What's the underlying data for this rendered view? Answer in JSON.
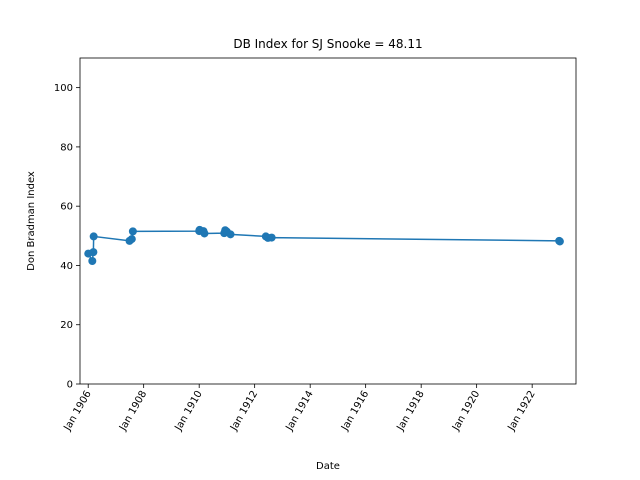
{
  "chart_data": {
    "type": "line",
    "title": "DB Index for SJ Snooke = 48.11",
    "xlabel": "Date",
    "ylabel": "Don Bradman Index",
    "ylim": [
      0,
      110
    ],
    "xlim": [
      "1905-09-15",
      "1923-08-01"
    ],
    "grid": false,
    "legend": false,
    "colors": {
      "series": "#1f77b4"
    },
    "y_ticks": [
      0,
      20,
      40,
      60,
      80,
      100
    ],
    "x_ticks": [
      {
        "date": "1906-01-01",
        "label": "Jan 1906"
      },
      {
        "date": "1908-01-01",
        "label": "Jan 1908"
      },
      {
        "date": "1910-01-01",
        "label": "Jan 1910"
      },
      {
        "date": "1912-01-01",
        "label": "Jan 1912"
      },
      {
        "date": "1914-01-01",
        "label": "Jan 1914"
      },
      {
        "date": "1916-01-01",
        "label": "Jan 1916"
      },
      {
        "date": "1918-01-01",
        "label": "Jan 1918"
      },
      {
        "date": "1920-01-01",
        "label": "Jan 1920"
      },
      {
        "date": "1922-01-01",
        "label": "Jan 1922"
      }
    ],
    "series": [
      {
        "points": [
          {
            "x": "1906-01-02",
            "y": 44.0
          },
          {
            "x": "1906-02-24",
            "y": 41.5
          },
          {
            "x": "1906-03-10",
            "y": 44.5
          },
          {
            "x": "1906-03-14",
            "y": 49.8
          },
          {
            "x": "1907-06-29",
            "y": 48.3
          },
          {
            "x": "1907-07-29",
            "y": 48.9
          },
          {
            "x": "1907-08-12",
            "y": 51.5
          },
          {
            "x": "1910-01-01",
            "y": 51.6
          },
          {
            "x": "1910-01-07",
            "y": 52.0
          },
          {
            "x": "1910-02-26",
            "y": 51.6
          },
          {
            "x": "1910-03-11",
            "y": 50.8
          },
          {
            "x": "1910-11-26",
            "y": 50.9
          },
          {
            "x": "1910-12-09",
            "y": 51.9
          },
          {
            "x": "1911-01-01",
            "y": 51.4
          },
          {
            "x": "1911-02-17",
            "y": 50.5
          },
          {
            "x": "1912-05-27",
            "y": 49.8
          },
          {
            "x": "1912-06-24",
            "y": 49.3
          },
          {
            "x": "1912-08-12",
            "y": 49.4
          },
          {
            "x": "1922-12-23",
            "y": 48.3
          },
          {
            "x": "1923-01-01",
            "y": 48.1
          }
        ]
      }
    ]
  }
}
